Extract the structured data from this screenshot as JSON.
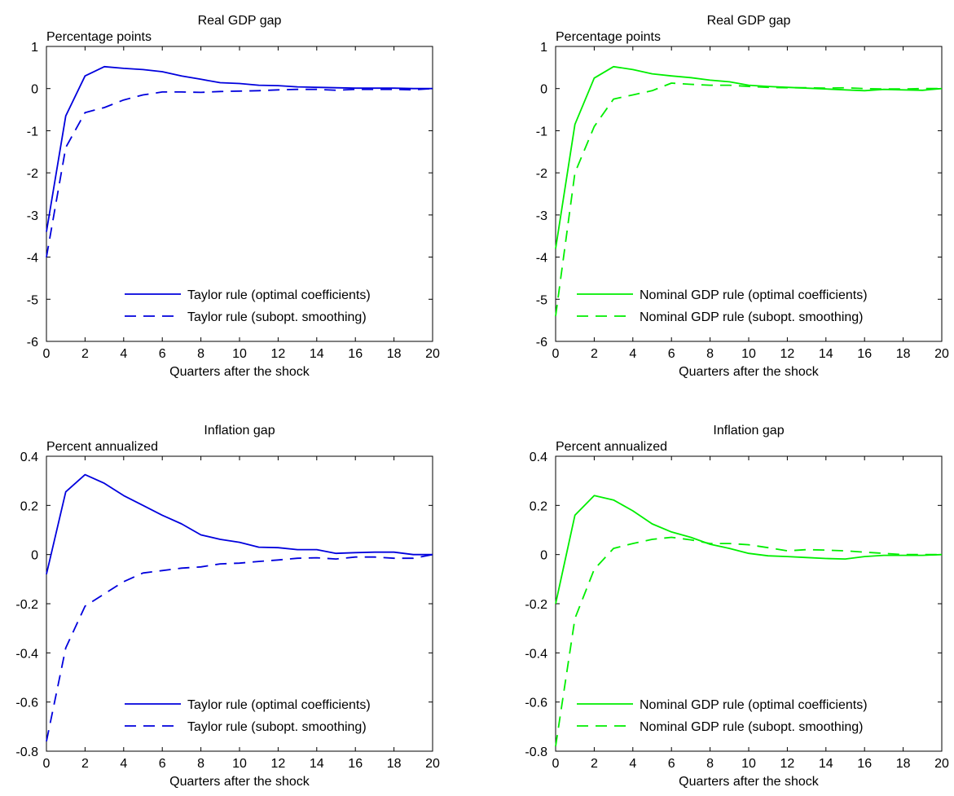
{
  "chart_data": [
    {
      "type": "line",
      "title": "Real GDP gap",
      "ylabel": "Percentage points",
      "xlabel": "Quarters after the shock",
      "xlim": [
        0,
        20
      ],
      "ylim": [
        -6,
        1
      ],
      "xticks": [
        0,
        2,
        4,
        6,
        8,
        10,
        12,
        14,
        16,
        18,
        20
      ],
      "yticks": [
        -6,
        -5,
        -4,
        -3,
        -2,
        -1,
        0,
        1
      ],
      "legend_position": "bottom-right",
      "grid": false,
      "color": "#0000dd",
      "x": [
        0,
        1,
        2,
        3,
        4,
        5,
        6,
        7,
        8,
        9,
        10,
        11,
        12,
        13,
        14,
        15,
        16,
        17,
        18,
        19,
        20
      ],
      "series": [
        {
          "name": "Taylor rule (optimal coefficients)",
          "style": "solid",
          "values": [
            -3.4,
            -0.65,
            0.3,
            0.52,
            0.48,
            0.45,
            0.4,
            0.3,
            0.22,
            0.14,
            0.12,
            0.08,
            0.07,
            0.04,
            0.03,
            0.02,
            0.01,
            0.01,
            0.01,
            0.0,
            0.0
          ]
        },
        {
          "name": "Taylor rule (subopt. smoothing)",
          "style": "dashed",
          "values": [
            -4.0,
            -1.4,
            -0.57,
            -0.45,
            -0.27,
            -0.15,
            -0.08,
            -0.08,
            -0.09,
            -0.07,
            -0.06,
            -0.05,
            -0.03,
            -0.02,
            -0.02,
            -0.04,
            -0.02,
            -0.02,
            -0.02,
            -0.03,
            0.0
          ]
        }
      ]
    },
    {
      "type": "line",
      "title": "Real GDP gap",
      "ylabel": "Percentage points",
      "xlabel": "Quarters after the shock",
      "xlim": [
        0,
        20
      ],
      "ylim": [
        -6,
        1
      ],
      "xticks": [
        0,
        2,
        4,
        6,
        8,
        10,
        12,
        14,
        16,
        18,
        20
      ],
      "yticks": [
        -6,
        -5,
        -4,
        -3,
        -2,
        -1,
        0,
        1
      ],
      "legend_position": "bottom-right",
      "grid": false,
      "color": "#00ee00",
      "x": [
        0,
        1,
        2,
        3,
        4,
        5,
        6,
        7,
        8,
        9,
        10,
        11,
        12,
        13,
        14,
        15,
        16,
        17,
        18,
        19,
        20
      ],
      "series": [
        {
          "name": "Nominal GDP rule (optimal coefficients)",
          "style": "solid",
          "values": [
            -3.8,
            -0.85,
            0.25,
            0.52,
            0.45,
            0.35,
            0.3,
            0.26,
            0.2,
            0.16,
            0.08,
            0.05,
            0.03,
            0.01,
            -0.01,
            -0.03,
            -0.05,
            -0.02,
            -0.03,
            -0.04,
            0.0
          ]
        },
        {
          "name": "Nominal GDP rule (subopt. smoothing)",
          "style": "dashed",
          "values": [
            -5.4,
            -2.0,
            -0.9,
            -0.25,
            -0.15,
            -0.05,
            0.13,
            0.1,
            0.08,
            0.08,
            0.05,
            0.03,
            0.02,
            0.02,
            0.01,
            0.02,
            0.0,
            -0.01,
            -0.01,
            0.0,
            0.0
          ]
        }
      ]
    },
    {
      "type": "line",
      "title": "Inflation gap",
      "ylabel": "Percent annualized",
      "xlabel": "Quarters after the shock",
      "xlim": [
        0,
        20
      ],
      "ylim": [
        -0.8,
        0.4
      ],
      "xticks": [
        0,
        2,
        4,
        6,
        8,
        10,
        12,
        14,
        16,
        18,
        20
      ],
      "yticks": [
        -0.8,
        -0.6,
        -0.4,
        -0.2,
        0,
        0.2,
        0.4
      ],
      "legend_position": "bottom-right",
      "grid": false,
      "color": "#0000dd",
      "x": [
        0,
        1,
        2,
        3,
        4,
        5,
        6,
        7,
        8,
        9,
        10,
        11,
        12,
        13,
        14,
        15,
        16,
        17,
        18,
        19,
        20
      ],
      "series": [
        {
          "name": "Taylor rule (optimal coefficients)",
          "style": "solid",
          "values": [
            -0.08,
            0.255,
            0.325,
            0.29,
            0.24,
            0.2,
            0.16,
            0.125,
            0.08,
            0.062,
            0.05,
            0.03,
            0.028,
            0.02,
            0.02,
            0.005,
            0.008,
            0.01,
            0.01,
            0.0,
            0.0
          ]
        },
        {
          "name": "Taylor rule (subopt. smoothing)",
          "style": "dashed",
          "values": [
            -0.76,
            -0.38,
            -0.21,
            -0.16,
            -0.11,
            -0.075,
            -0.065,
            -0.055,
            -0.05,
            -0.038,
            -0.035,
            -0.028,
            -0.022,
            -0.015,
            -0.013,
            -0.018,
            -0.01,
            -0.01,
            -0.015,
            -0.015,
            0.0
          ]
        }
      ]
    },
    {
      "type": "line",
      "title": "Inflation gap",
      "ylabel": "Percent annualized",
      "xlabel": "Quarters after the shock",
      "xlim": [
        0,
        20
      ],
      "ylim": [
        -0.8,
        0.4
      ],
      "xticks": [
        0,
        2,
        4,
        6,
        8,
        10,
        12,
        14,
        16,
        18,
        20
      ],
      "yticks": [
        -0.8,
        -0.6,
        -0.4,
        -0.2,
        0,
        0.2,
        0.4
      ],
      "legend_position": "bottom-right",
      "grid": false,
      "color": "#00ee00",
      "x": [
        0,
        1,
        2,
        3,
        4,
        5,
        6,
        7,
        8,
        9,
        10,
        11,
        12,
        13,
        14,
        15,
        16,
        17,
        18,
        19,
        20
      ],
      "series": [
        {
          "name": "Nominal GDP rule (optimal coefficients)",
          "style": "solid",
          "values": [
            -0.2,
            0.16,
            0.24,
            0.222,
            0.178,
            0.125,
            0.092,
            0.07,
            0.042,
            0.025,
            0.005,
            -0.005,
            -0.008,
            -0.012,
            -0.016,
            -0.018,
            -0.008,
            -0.003,
            -0.003,
            -0.003,
            0.0
          ]
        },
        {
          "name": "Nominal GDP rule (subopt. smoothing)",
          "style": "dashed",
          "values": [
            -0.78,
            -0.26,
            -0.06,
            0.025,
            0.045,
            0.062,
            0.07,
            0.06,
            0.045,
            0.045,
            0.04,
            0.028,
            0.015,
            0.02,
            0.018,
            0.015,
            0.01,
            0.005,
            0.0,
            0.0,
            0.0
          ]
        }
      ]
    }
  ]
}
